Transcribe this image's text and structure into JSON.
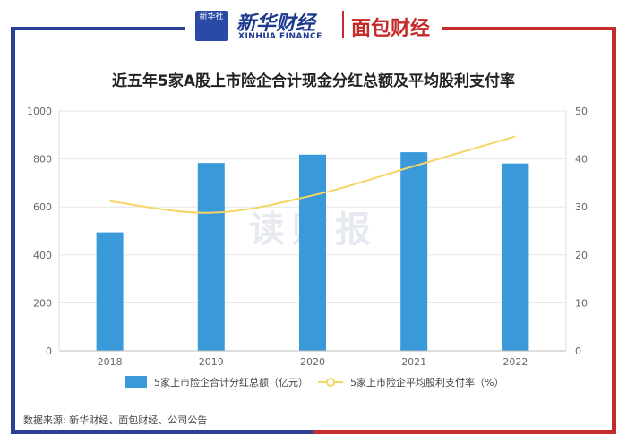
{
  "header": {
    "logo_text": "新华社",
    "brand1": "新华财经",
    "brand1_sub": "XINHUA FINANCE",
    "brand2": "面包财经"
  },
  "watermark": "读财报",
  "source": "数据来源: 新华财经、面包财经、公司公告",
  "chart_data": {
    "type": "bar",
    "title": "近五年5家A股上市险企合计现金分红总额及平均股利支付率",
    "categories": [
      "2018",
      "2019",
      "2020",
      "2021",
      "2022"
    ],
    "series": [
      {
        "name": "5家上市险企合计分红总额（亿元）",
        "type": "bar",
        "axis": "left",
        "color": "#3a9ad9",
        "values": [
          494,
          783,
          818,
          828,
          781
        ]
      },
      {
        "name": "5家上市险企平均股利支付率（%）",
        "type": "line",
        "axis": "right",
        "color": "#f5d565",
        "values": [
          31.2,
          28.8,
          32.4,
          38.5,
          44.7
        ]
      }
    ],
    "ylim_left": [
      0,
      1000
    ],
    "yticks_left": [
      "0",
      "200",
      "400",
      "600",
      "800",
      "1000"
    ],
    "ylim_right": [
      0,
      50
    ],
    "yticks_right": [
      "0",
      "10",
      "20",
      "30",
      "40",
      "50"
    ],
    "grid": true,
    "legend": "bottom"
  }
}
